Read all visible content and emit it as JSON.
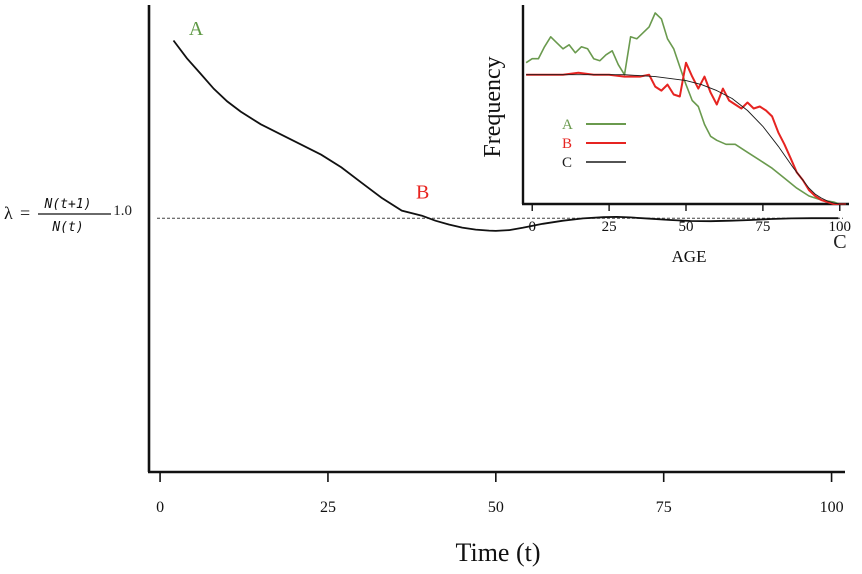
{
  "chart_data": [
    {
      "id": "main",
      "type": "line",
      "xlabel": "Time (t)",
      "ylabel": "",
      "xticks": [
        0,
        25,
        50,
        75,
        100
      ],
      "xlim": [
        -1.5,
        102
      ],
      "ylim": [
        0,
        1.84
      ],
      "reference_line": {
        "y": 1.0,
        "label": "1.0",
        "style": "dotted"
      },
      "formula": {
        "lambda": "λ",
        "equals": "=",
        "numerator": "N(t+1)",
        "denominator": "N(t)"
      },
      "points": [
        {
          "label": "A",
          "x": 2.5,
          "y": 1.69,
          "color": "#5f9945"
        },
        {
          "label": "B",
          "x": 40.5,
          "y": 1.03,
          "color": "#e8231f"
        },
        {
          "label": "C",
          "x": 101,
          "y": 1.0,
          "color": "#222222"
        }
      ],
      "series": [
        {
          "color": "#111111",
          "x": [
            2,
            4,
            6,
            8,
            10,
            12,
            15,
            18,
            21,
            24,
            27,
            30,
            33,
            36,
            39,
            41,
            43,
            45,
            47,
            49,
            50,
            52,
            54,
            57,
            60,
            63,
            66,
            68,
            70,
            73,
            76,
            79,
            82,
            85,
            88,
            91,
            94,
            97,
            100,
            101
          ],
          "y": [
            1.7,
            1.63,
            1.57,
            1.51,
            1.46,
            1.42,
            1.37,
            1.33,
            1.29,
            1.25,
            1.2,
            1.14,
            1.08,
            1.03,
            1.01,
            0.99,
            0.975,
            0.963,
            0.955,
            0.951,
            0.95,
            0.953,
            0.962,
            0.978,
            0.99,
            0.999,
            1.004,
            1.005,
            1.003,
            0.998,
            0.993,
            0.989,
            0.988,
            0.99,
            0.993,
            0.997,
            0.999,
            1.0,
            1.0,
            1.0
          ]
        }
      ]
    },
    {
      "id": "inset",
      "type": "line",
      "xlabel": "AGE",
      "ylabel": "Frequency",
      "xticks": [
        0,
        25,
        50,
        75,
        100
      ],
      "xlim": [
        -3,
        103
      ],
      "ylim": [
        0,
        100
      ],
      "legend": {
        "position": "left-center",
        "entries": [
          "A",
          "B",
          "C"
        ]
      },
      "series": [
        {
          "name": "A",
          "color": "#6a9a4e",
          "x": [
            -2,
            0,
            2,
            4,
            6,
            8,
            10,
            12,
            14,
            16,
            18,
            20,
            22,
            24,
            26,
            28,
            30,
            32,
            34,
            36,
            38,
            40,
            42,
            44,
            46,
            48,
            50,
            52,
            54,
            56,
            58,
            60,
            63,
            66,
            70,
            74,
            78,
            82,
            86,
            90,
            94,
            98,
            100,
            102
          ],
          "y": [
            71,
            73,
            73,
            79,
            84,
            81,
            78,
            80,
            76,
            79,
            78,
            73,
            72,
            75,
            77,
            70,
            65,
            84,
            83,
            86,
            89,
            96,
            93,
            83,
            78,
            69,
            60,
            52,
            49,
            40,
            34,
            32,
            30,
            30,
            26,
            22,
            18,
            13,
            8,
            4,
            2,
            1,
            0,
            0
          ]
        },
        {
          "name": "B",
          "color": "#e62421",
          "x": [
            -2,
            5,
            10,
            15,
            20,
            25,
            30,
            35,
            38,
            40,
            42,
            44,
            46,
            48,
            50,
            52,
            54,
            56,
            58,
            60,
            62,
            64,
            66,
            68,
            70,
            72,
            74,
            76,
            78,
            80,
            82,
            84,
            86,
            88,
            90,
            92,
            94,
            96,
            98,
            100,
            102
          ],
          "y": [
            65,
            65,
            65,
            66,
            65,
            65,
            64,
            64,
            65,
            59,
            57,
            60,
            55,
            54,
            71,
            64,
            58,
            64,
            56,
            50,
            58,
            52,
            50,
            48,
            51,
            48,
            49,
            47,
            44,
            36,
            30,
            23,
            16,
            12,
            7,
            4,
            2,
            1,
            0,
            0,
            0
          ]
        },
        {
          "name": "C",
          "color": "#1a1a1a",
          "x": [
            -2,
            10,
            20,
            30,
            40,
            45,
            50,
            55,
            60,
            65,
            70,
            75,
            80,
            85,
            88,
            90,
            92,
            94,
            96,
            98,
            100,
            102
          ],
          "y": [
            65,
            65,
            65,
            65,
            64,
            63,
            62,
            60,
            57,
            53,
            47,
            39,
            29,
            18,
            12,
            8,
            5,
            3,
            1.5,
            0.5,
            0,
            0
          ]
        }
      ]
    }
  ]
}
